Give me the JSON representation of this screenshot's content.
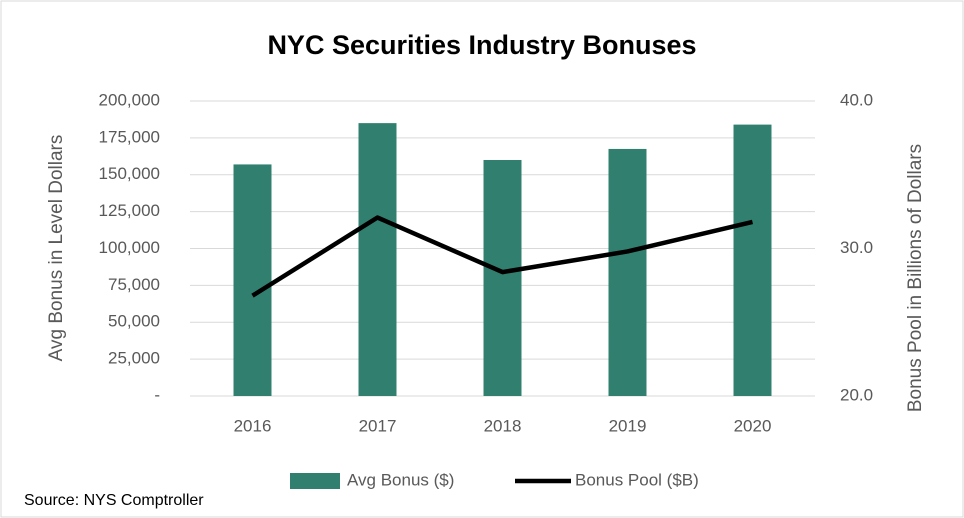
{
  "chart_data": {
    "type": "bar_line",
    "title": "NYC Securities Industry Bonuses",
    "y_label": "Avg Bonus in Level Dollars",
    "y2_label": "Bonus Pool in Billions of Dollars",
    "source": "Source: NYS Comptroller",
    "categories": [
      "2016",
      "2017",
      "2018",
      "2019",
      "2020"
    ],
    "series": [
      {
        "name": "Avg Bonus ($)",
        "type": "bar",
        "color": "#31806f",
        "values": [
          157000,
          185000,
          160000,
          167500,
          184000
        ]
      },
      {
        "name": "Bonus Pool ($B)",
        "type": "line",
        "axis": "y2",
        "color": "#000000",
        "values": [
          26.8,
          32.1,
          28.4,
          29.8,
          31.8
        ]
      }
    ],
    "ylim": [
      0,
      200000
    ],
    "yticks": [
      {
        "value": 0,
        "label": "-"
      },
      {
        "value": 25000,
        "label": "25,000"
      },
      {
        "value": 50000,
        "label": "50,000"
      },
      {
        "value": 75000,
        "label": "75,000"
      },
      {
        "value": 100000,
        "label": "100,000"
      },
      {
        "value": 125000,
        "label": "125,000"
      },
      {
        "value": 150000,
        "label": "150,000"
      },
      {
        "value": 175000,
        "label": "175,000"
      },
      {
        "value": 200000,
        "label": "200,000"
      }
    ],
    "y2lim": [
      20,
      40
    ],
    "y2ticks": [
      {
        "value": 20,
        "label": "20.0"
      },
      {
        "value": 30,
        "label": "30.0"
      },
      {
        "value": 40,
        "label": "40.0"
      }
    ],
    "grid": true,
    "legend": "bottom"
  }
}
